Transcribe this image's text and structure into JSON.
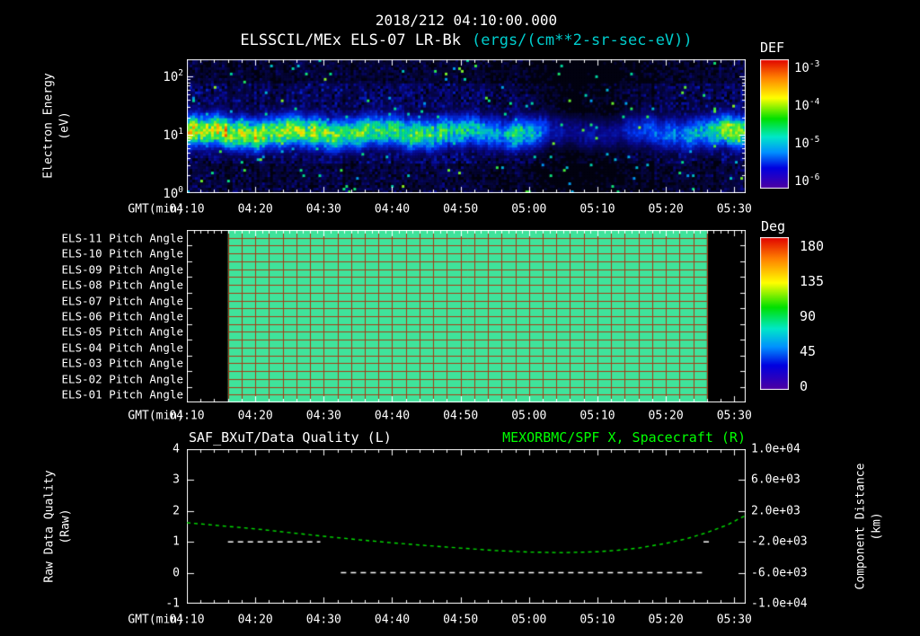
{
  "title": "2018/212 04:10:00.000",
  "subtitle": {
    "instrument": "ELSSCIL/MEx ELS-07 LR-Bk",
    "units": "(ergs/(cm**2-sr-sec-eV))"
  },
  "axis": {
    "x_label": "GMT(min)",
    "x_ticks": [
      "04:10",
      "04:20",
      "04:30",
      "04:40",
      "04:50",
      "05:00",
      "05:10",
      "05:20",
      "05:30"
    ],
    "x_start_min": 0,
    "x_end_min": 81.67,
    "x_major_interval_min": 10,
    "x_minor_interval_min": 2
  },
  "spectrogram_panel": {
    "ylabel_line1": "Electron Energy",
    "ylabel_line2": "(eV)",
    "ytick_exponents": [
      0,
      1,
      2
    ],
    "y_log_max": 2.3,
    "colorbar": {
      "title": "DEF",
      "tick_exponents": [
        -3,
        -4,
        -5,
        -6
      ]
    }
  },
  "pitch_panel": {
    "row_labels": [
      "ELS-11 Pitch Angle",
      "ELS-10 Pitch Angle",
      "ELS-09 Pitch Angle",
      "ELS-08 Pitch Angle",
      "ELS-07 Pitch Angle",
      "ELS-06 Pitch Angle",
      "ELS-05 Pitch Angle",
      "ELS-04 Pitch Angle",
      "ELS-03 Pitch Angle",
      "ELS-02 Pitch Angle",
      "ELS-01 Pitch Angle"
    ],
    "colorbar": {
      "title": "Deg",
      "ticks": [
        "180",
        "135",
        "90",
        "45",
        "0"
      ]
    }
  },
  "bottom_panel": {
    "title_left": "SAF_BXuT/Data Quality (L)",
    "title_right": "MEXORBMC/SPF X, Spacecraft (R)",
    "ylabel_left_line1": "Raw Data Quality",
    "ylabel_left_line2": "(Raw)",
    "ylabel_right_line1": "Component Distance",
    "ylabel_right_line2": "(km)",
    "left_ticks": [
      "4",
      "3",
      "2",
      "1",
      "0",
      "-1"
    ],
    "right_ticks": [
      "1.0e+04",
      "6.0e+03",
      "2.0e+03",
      "-2.0e+03",
      "-6.0e+03",
      "-1.0e+04"
    ]
  },
  "colors": {
    "background": "#000000",
    "text": "#FFFFFF",
    "units_text": "#00CDCD",
    "right_title_green": "#00FF00",
    "curve_green": "#00E000",
    "quality_white": "#FFFFFF",
    "pitch_green": "#3FE39B",
    "grid_red": "#A83A14",
    "frame": "#FFFFFF"
  },
  "chart_data": [
    {
      "type": "heatmap",
      "name": "electron-energy-spectrogram",
      "title": "ELSSCIL/MEx ELS-07 LR-Bk (ergs/(cm**2-sr-sec-eV))",
      "x_range_min_after_0410": [
        0,
        81.67
      ],
      "y_axis": "Electron Energy (eV), log scale",
      "y_range_eV": [
        1,
        200
      ],
      "z_axis": "DEF",
      "z_range": [
        1e-06,
        0.001
      ],
      "band_center_eV": 11,
      "band_sigma_log10": 0.18,
      "band_intensity_profile": {
        "t_min": [
          0,
          5,
          10,
          15,
          20,
          25,
          28,
          32,
          36,
          40,
          43,
          46,
          48,
          51,
          53,
          56,
          60,
          63,
          66,
          70,
          73,
          76,
          78,
          80,
          81.6
        ],
        "intensity": [
          0.78,
          0.8,
          0.76,
          0.72,
          0.7,
          0.66,
          0.6,
          0.62,
          0.58,
          0.54,
          0.5,
          0.38,
          0.55,
          0.45,
          0.18,
          0.12,
          0.14,
          0.12,
          0.28,
          0.33,
          0.38,
          0.5,
          0.65,
          0.75,
          0.78
        ]
      },
      "background_profile": {
        "t_min": [
          0,
          40,
          46,
          48,
          52,
          56,
          62,
          66,
          75,
          81.6
        ],
        "level": [
          0.5,
          0.5,
          0.3,
          0.45,
          0.2,
          0.12,
          0.15,
          0.3,
          0.45,
          0.55
        ]
      }
    },
    {
      "type": "heatmap",
      "name": "pitch-angle-panels",
      "rows": [
        "ELS-11",
        "ELS-10",
        "ELS-09",
        "ELS-08",
        "ELS-07",
        "ELS-06",
        "ELS-05",
        "ELS-04",
        "ELS-03",
        "ELS-02",
        "ELS-01"
      ],
      "x_range_min_after_0410": [
        0,
        81.67
      ],
      "data_start_min": 6,
      "data_end_min": 76,
      "uniform_value_deg": 100,
      "z_range_deg": [
        0,
        180
      ]
    },
    {
      "type": "line",
      "name": "quality-and-spacecraft-x",
      "left_ylim": [
        -1,
        4
      ],
      "right_ylim": [
        -10000,
        10000
      ],
      "series": [
        {
          "name": "SAF_BXuT/Data Quality (L)",
          "axis": "left",
          "style": "dashed",
          "color": "#FFFFFF",
          "segments": [
            {
              "value": 1,
              "t_start": 6,
              "t_end": 19.5
            },
            {
              "value": 0,
              "t_start": 22.5,
              "t_end": 75.5
            },
            {
              "value": 1,
              "t_start": 75.5,
              "t_end": 76.5
            }
          ]
        },
        {
          "name": "MEXORBMC/SPF X, Spacecraft (R)",
          "axis": "right",
          "style": "dashed",
          "color": "#00E000",
          "points_t_min": [
            0,
            5,
            10,
            15,
            20,
            25,
            30,
            35,
            40,
            45,
            50,
            55,
            60,
            63,
            66,
            70,
            73,
            76,
            79,
            81.6
          ],
          "points_km": [
            480,
            80,
            -320,
            -800,
            -1280,
            -1720,
            -2120,
            -2480,
            -2800,
            -3120,
            -3320,
            -3400,
            -3280,
            -3080,
            -2800,
            -2200,
            -1600,
            -800,
            200,
            1400
          ]
        }
      ]
    }
  ]
}
